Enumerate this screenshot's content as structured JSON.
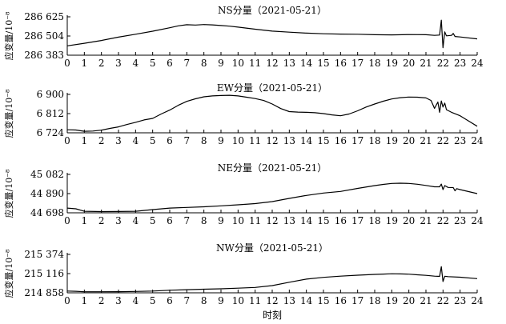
{
  "x_axis_title": "时刻",
  "chart_data": [
    {
      "type": "line",
      "title": "NS分量（2021-05-21）",
      "ylabel": "应变量/10⁻⁸",
      "xlabel": "时刻",
      "x_ticks": [
        0,
        1,
        2,
        3,
        4,
        5,
        6,
        7,
        8,
        9,
        10,
        11,
        12,
        13,
        14,
        15,
        16,
        17,
        18,
        19,
        20,
        21,
        22,
        23,
        24
      ],
      "y_ticks": [
        286383,
        286504,
        286625
      ],
      "y_tick_labels": [
        "286 383",
        "286 504",
        "286 625"
      ],
      "ylim": [
        286383,
        286625
      ],
      "xlim": [
        0,
        24
      ],
      "series": [
        {
          "x": [
            0,
            1,
            2,
            3,
            4,
            5,
            6,
            6.5,
            7,
            7.5,
            8,
            8.5,
            9,
            9.5,
            10,
            11,
            12,
            13,
            14,
            15,
            16,
            17,
            18,
            19,
            20,
            21,
            21.5,
            21.8,
            21.9,
            22,
            22.1,
            22.2,
            22.5,
            22.6,
            22.7,
            23,
            24
          ],
          "y": [
            286442,
            286458,
            286476,
            286497,
            286515,
            286534,
            286556,
            286568,
            286575,
            286573,
            286576,
            286574,
            286570,
            286566,
            286560,
            286547,
            286535,
            286528,
            286522,
            286518,
            286516,
            286515,
            286512,
            286511,
            286513,
            286512,
            286508,
            286510,
            286604,
            286430,
            286530,
            286505,
            286508,
            286520,
            286501,
            286498,
            286486
          ]
        }
      ]
    },
    {
      "type": "line",
      "title": "EW分量（2021-05-21）",
      "ylabel": "应变量/10⁻⁸",
      "xlabel": "时刻",
      "x_ticks": [
        0,
        1,
        2,
        3,
        4,
        5,
        6,
        7,
        8,
        9,
        10,
        11,
        12,
        13,
        14,
        15,
        16,
        17,
        18,
        19,
        20,
        21,
        22,
        23,
        24
      ],
      "y_ticks": [
        6724,
        6812,
        6900
      ],
      "y_tick_labels": [
        "6 724",
        "6 812",
        "6 900"
      ],
      "ylim": [
        6724,
        6900
      ],
      "xlim": [
        0,
        24
      ],
      "series": [
        {
          "x": [
            0,
            0.5,
            1,
            1.5,
            2,
            2.5,
            3,
            3.5,
            4,
            4.5,
            5,
            5.5,
            6,
            6.5,
            7,
            7.5,
            8,
            8.5,
            9,
            9.5,
            10,
            10.5,
            11,
            11.5,
            12,
            12.5,
            13,
            13.5,
            14,
            14.5,
            15,
            15.5,
            16,
            16.5,
            17,
            17.5,
            18,
            18.5,
            19,
            19.5,
            20,
            20.5,
            21,
            21.3,
            21.5,
            21.7,
            21.8,
            21.9,
            22,
            22.1,
            22.2,
            22.5,
            23,
            23.5,
            24
          ],
          "y": [
            6738,
            6737,
            6731,
            6732,
            6736,
            6744,
            6751,
            6762,
            6772,
            6783,
            6790,
            6810,
            6828,
            6850,
            6868,
            6880,
            6889,
            6893,
            6895,
            6896,
            6893,
            6887,
            6881,
            6872,
            6856,
            6835,
            6821,
            6819,
            6818,
            6816,
            6812,
            6806,
            6802,
            6810,
            6825,
            6842,
            6856,
            6869,
            6879,
            6885,
            6888,
            6887,
            6884,
            6872,
            6836,
            6865,
            6818,
            6870,
            6842,
            6860,
            6830,
            6818,
            6802,
            6778,
            6754
          ]
        }
      ]
    },
    {
      "type": "line",
      "title": "NE分量（2021-05-21）",
      "ylabel": "应变量/10⁻⁸",
      "xlabel": "时刻",
      "x_ticks": [
        0,
        1,
        2,
        3,
        4,
        5,
        6,
        7,
        8,
        9,
        10,
        11,
        12,
        13,
        14,
        15,
        16,
        17,
        18,
        19,
        20,
        21,
        22,
        23,
        24
      ],
      "y_ticks": [
        44698,
        44890,
        45082
      ],
      "y_tick_labels": [
        "44 698",
        "44 890",
        "45 082"
      ],
      "ylim": [
        44698,
        45082
      ],
      "xlim": [
        0,
        24
      ],
      "series": [
        {
          "x": [
            0,
            0.5,
            1,
            2,
            3,
            4,
            5,
            6,
            7,
            8,
            9,
            10,
            11,
            12,
            13,
            14,
            15,
            16,
            17,
            18,
            18.5,
            19,
            19.5,
            20,
            20.5,
            21,
            21.5,
            21.8,
            21.9,
            22,
            22.1,
            22.3,
            22.6,
            22.7,
            22.8,
            23,
            24
          ],
          "y": [
            44745,
            44738,
            44713,
            44710,
            44711,
            44713,
            44730,
            44745,
            44752,
            44758,
            44768,
            44778,
            44790,
            44810,
            44842,
            44872,
            44896,
            44912,
            44942,
            44970,
            44982,
            44992,
            44994,
            44992,
            44984,
            44972,
            44958,
            44958,
            44985,
            44930,
            44970,
            44952,
            44950,
            44918,
            44940,
            44930,
            44890
          ]
        }
      ]
    },
    {
      "type": "line",
      "title": "NW分量（2021-05-21）",
      "ylabel": "应变量/10⁻⁸",
      "xlabel": "时刻",
      "x_ticks": [
        0,
        1,
        2,
        3,
        4,
        5,
        6,
        7,
        8,
        9,
        10,
        11,
        12,
        13,
        14,
        15,
        16,
        17,
        18,
        19,
        20,
        21,
        22,
        23,
        24
      ],
      "y_ticks": [
        214858,
        215116,
        215374
      ],
      "y_tick_labels": [
        "214 858",
        "215 116",
        "215 374"
      ],
      "ylim": [
        214858,
        215374
      ],
      "xlim": [
        0,
        24
      ],
      "series": [
        {
          "x": [
            0,
            0.5,
            1,
            2,
            3,
            4,
            5,
            6,
            7,
            8,
            9,
            10,
            11,
            12,
            13,
            14,
            15,
            16,
            17,
            18,
            18.5,
            19,
            19.5,
            20,
            20.5,
            21,
            21.5,
            21.8,
            21.9,
            22,
            22.1,
            22.3,
            23,
            24
          ],
          "y": [
            214882,
            214878,
            214872,
            214872,
            214873,
            214876,
            214882,
            214892,
            214900,
            214906,
            214912,
            214920,
            214930,
            214955,
            215000,
            215042,
            215066,
            215082,
            215095,
            215105,
            215110,
            215114,
            215112,
            215108,
            215100,
            215092,
            215082,
            215078,
            215210,
            215010,
            215080,
            215075,
            215068,
            215048
          ]
        }
      ]
    }
  ]
}
